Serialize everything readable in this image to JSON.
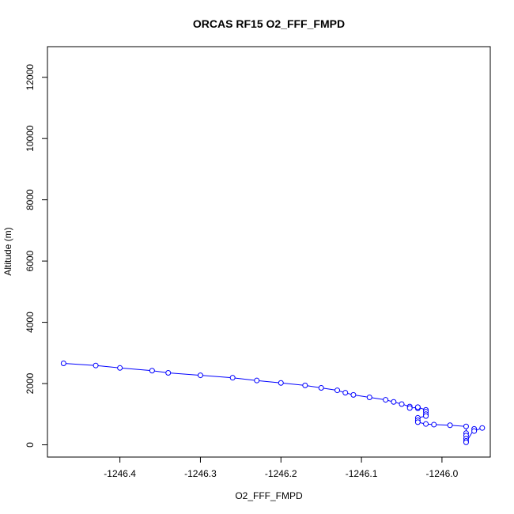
{
  "chart_data": {
    "type": "scatter",
    "title": "ORCAS RF15 O2_FFF_FMPD",
    "xlabel": "O2_FFF_FMPD",
    "ylabel": "Altitude (m)",
    "xlim": [
      -1246.49,
      -1245.94
    ],
    "ylim": [
      -400,
      13000
    ],
    "x_ticks": [
      -1246.4,
      -1246.3,
      -1246.2,
      -1246.1,
      -1246.0
    ],
    "x_tick_labels": [
      "-1246.4",
      "-1246.3",
      "-1246.2",
      "-1246.1",
      "-1246.0"
    ],
    "y_ticks": [
      0,
      2000,
      4000,
      6000,
      8000,
      10000,
      12000
    ],
    "y_tick_labels": [
      "0",
      "2000",
      "4000",
      "6000",
      "8000",
      "10000",
      "12000"
    ],
    "grid": false,
    "legend": "none",
    "colors": {
      "series": "#0000ff",
      "axis": "#000000"
    },
    "series": [
      {
        "x": [
          -1246.47,
          -1246.43,
          -1246.4,
          -1246.36,
          -1246.34,
          -1246.3,
          -1246.26,
          -1246.23,
          -1246.2,
          -1246.17,
          -1246.15,
          -1246.13,
          -1246.12,
          -1246.11,
          -1246.09,
          -1246.07,
          -1246.06,
          -1246.05,
          -1246.04,
          -1246.04,
          -1246.03,
          -1246.03,
          -1246.03,
          -1246.02,
          -1246.02,
          -1246.02,
          -1246.02,
          -1246.03,
          -1246.03,
          -1246.03,
          -1246.02,
          -1246.01,
          -1245.99,
          -1245.97,
          -1245.97,
          -1245.97,
          -1245.97,
          -1245.97,
          -1245.97,
          -1245.96,
          -1245.96,
          -1245.95
        ],
        "y": [
          2660,
          2590,
          2510,
          2420,
          2350,
          2270,
          2190,
          2100,
          2020,
          1940,
          1860,
          1780,
          1700,
          1630,
          1550,
          1470,
          1400,
          1330,
          1250,
          1200,
          1220,
          1190,
          1230,
          1140,
          1080,
          1000,
          940,
          880,
          800,
          740,
          680,
          660,
          640,
          600,
          380,
          300,
          200,
          130,
          80,
          520,
          450,
          550
        ]
      }
    ]
  }
}
